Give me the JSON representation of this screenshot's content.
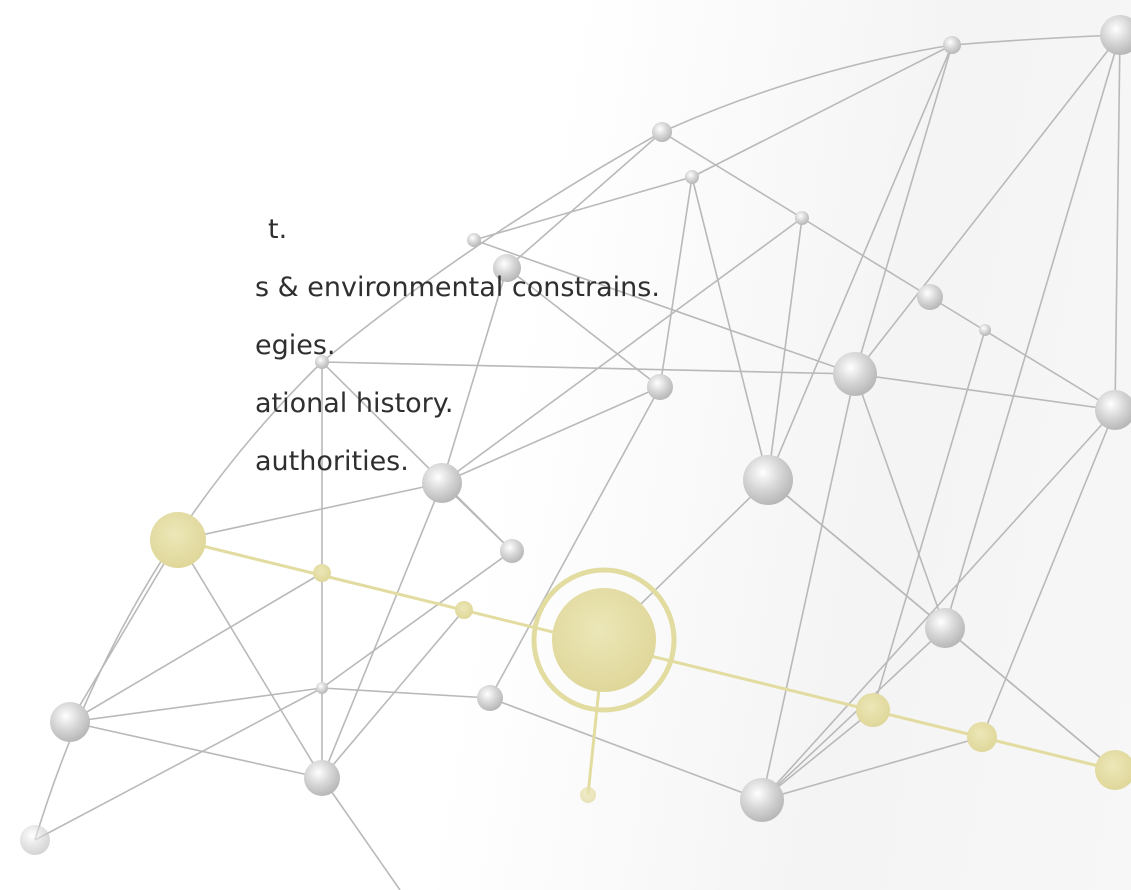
{
  "text_lines": [
    "t.",
    "s & environmental constrains.",
    "egies.",
    "ational history.",
    "authorities."
  ]
}
